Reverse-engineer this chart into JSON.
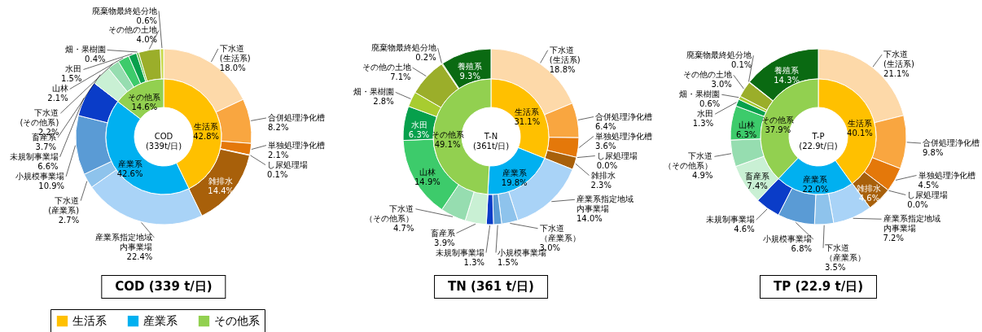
{
  "chart_data": [
    {
      "type": "donut",
      "annotations": [
        "COD\n(339t/日)"
      ],
      "legend": "bottom",
      "categories": [
        "生活系",
        "産業系",
        "その他系"
      ],
      "values": [
        42.8,
        42.6,
        14.6
      ],
      "colors": [
        "#ffc000",
        "#00b0f0",
        "#92d050"
      ],
      "value_labels": [
        "42.8%",
        "42.6%",
        "14.6%"
      ]
    },
    {
      "type": "donut",
      "title": "COD (339 t/日)",
      "categories": [
        "下水道\n(生活系)",
        "合併処理浄化槽",
        "単独処理浄化槽",
        "し尿処理場",
        "雑排水",
        "産業系指定地域内事業場",
        "下水道\n(産業系)",
        "小規模事業場",
        "未規制事業場",
        "畜産系",
        "下水道\n(その他系)",
        "山林",
        "水田",
        "畑・果樹園",
        "その他の土地",
        "廃棄物最終処分地"
      ],
      "values": [
        18.0,
        8.2,
        2.1,
        0.1,
        14.4,
        22.4,
        2.7,
        10.9,
        6.6,
        3.7,
        2.2,
        2.1,
        1.5,
        0.4,
        4.0,
        0.6
      ],
      "colors": [
        "#fdd9a9",
        "#f9a640",
        "#e4780a",
        "#c86410",
        "#a8600a",
        "#a9d3f7",
        "#8ec3ec",
        "#5a9bd5",
        "#0a3cc8",
        "#c9f0d4",
        "#96ddb0",
        "#3dcb6b",
        "#07a04c",
        "#5cc23a",
        "#9bae2a",
        "#c8da4a"
      ],
      "value_labels": [
        "18.0%",
        "8.2%",
        "2.1%",
        "0.1%",
        "14.4%",
        "22.4%",
        "2.7%",
        "10.9%",
        "6.6%",
        "3.7%",
        "2.2%",
        "2.1%",
        "1.5%",
        "0.4%",
        "4.0%",
        "0.6%"
      ]
    },
    {
      "type": "donut",
      "annotations": [
        "T-N\n(361t/日)"
      ],
      "categories": [
        "生活系",
        "産業系",
        "その他系"
      ],
      "values": [
        31.1,
        19.8,
        49.1
      ],
      "colors": [
        "#ffc000",
        "#00b0f0",
        "#92d050"
      ],
      "value_labels": [
        "31.1%",
        "19.8%",
        "49.1%"
      ]
    },
    {
      "type": "donut",
      "title": "TN (361 t/日)",
      "categories": [
        "下水道\n(生活系)",
        "合併処理浄化槽",
        "単独処理浄化槽",
        "し尿処理場",
        "雑排水",
        "産業系指定地域内事業場",
        "下水道（産業系）",
        "小規模事業場",
        "未規制事業場",
        "畜産系",
        "下水道（その他系）",
        "山林",
        "水田",
        "畑・果樹園",
        "その他の土地",
        "廃棄物最終処分地",
        "養殖系"
      ],
      "values": [
        18.8,
        6.4,
        3.6,
        0.0,
        2.3,
        14.0,
        3.0,
        1.5,
        1.3,
        3.9,
        4.7,
        14.9,
        6.3,
        2.8,
        7.1,
        0.2,
        9.3
      ],
      "colors": [
        "#fdd9a9",
        "#f9a640",
        "#e4780a",
        "#c86410",
        "#a8600a",
        "#a9d3f7",
        "#8ec3ec",
        "#5a9bd5",
        "#0a3cc8",
        "#c9f0d4",
        "#96ddb0",
        "#3dcb6b",
        "#07a04c",
        "#a8cc30",
        "#9bae2a",
        "#c8da4a",
        "#0a6a12"
      ],
      "value_labels": [
        "18.8%",
        "6.4%",
        "3.6%",
        "0.0%",
        "2.3%",
        "14.0%",
        "3.0%",
        "1.5%",
        "1.3%",
        "3.9%",
        "4.7%",
        "14.9%",
        "6.3%",
        "2.8%",
        "7.1%",
        "0.2%",
        "9.3%"
      ]
    },
    {
      "type": "donut",
      "annotations": [
        "T-P\n(22.9t/日)"
      ],
      "categories": [
        "生活系",
        "産業系",
        "その他系"
      ],
      "values": [
        40.1,
        22.0,
        37.9
      ],
      "colors": [
        "#ffc000",
        "#00b0f0",
        "#92d050"
      ],
      "value_labels": [
        "40.1%",
        "22.0%",
        "37.9%"
      ]
    },
    {
      "type": "donut",
      "title": "TP (22.9 t/日)",
      "categories": [
        "下水道\n(生活系)",
        "合併処理浄化槽",
        "単独処理浄化槽",
        "し尿処理場",
        "雑排水",
        "産業系指定地域内事業場",
        "下水道（産業系）",
        "小規模事業場",
        "未規制事業場",
        "畜産系",
        "下水道（その他系）",
        "山林",
        "水田",
        "畑・果樹園",
        "その他の土地",
        "廃棄物最終処分地",
        "養殖系"
      ],
      "values": [
        21.1,
        9.8,
        4.5,
        0.0,
        4.6,
        7.2,
        3.5,
        6.8,
        4.6,
        7.4,
        4.9,
        6.3,
        1.3,
        0.6,
        3.0,
        0.1,
        14.3
      ],
      "colors": [
        "#fdd9a9",
        "#f9a640",
        "#e4780a",
        "#c86410",
        "#a8600a",
        "#a9d3f7",
        "#8ec3ec",
        "#5a9bd5",
        "#0a3cc8",
        "#c9f0d4",
        "#96ddb0",
        "#3dcb6b",
        "#07a04c",
        "#a8cc30",
        "#9bae2a",
        "#c8da4a",
        "#0a6a12"
      ],
      "value_labels": [
        "21.1%",
        "9.8%",
        "4.5%",
        "0.0%",
        "4.6%",
        "7.2%",
        "3.5%",
        "6.8%",
        "4.6%",
        "7.4%",
        "4.9%",
        "6.3%",
        "1.3%",
        "0.6%",
        "3.0%",
        "0.1%",
        "14.3%"
      ]
    }
  ]
}
